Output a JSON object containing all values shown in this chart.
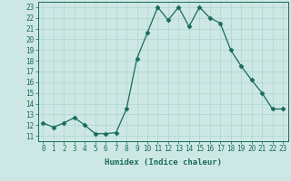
{
  "x": [
    0,
    1,
    2,
    3,
    4,
    5,
    6,
    7,
    8,
    9,
    10,
    11,
    12,
    13,
    14,
    15,
    16,
    17,
    18,
    19,
    20,
    21,
    22,
    23
  ],
  "y": [
    12.2,
    11.8,
    12.2,
    12.7,
    12.0,
    11.2,
    11.2,
    11.3,
    13.5,
    18.2,
    20.6,
    23.0,
    21.8,
    23.0,
    21.2,
    23.0,
    22.0,
    21.5,
    19.0,
    17.5,
    16.2,
    15.0,
    13.5,
    13.5
  ],
  "line_color": "#1a6b5a",
  "marker": "D",
  "marker_size": 2.5,
  "bg_color": "#cde8e4",
  "grid_color": "#b0d4ce",
  "xlabel": "Humidex (Indice chaleur)",
  "ylim": [
    10.5,
    23.5
  ],
  "xlim": [
    -0.5,
    23.5
  ],
  "yticks": [
    11,
    12,
    13,
    14,
    15,
    16,
    17,
    18,
    19,
    20,
    21,
    22,
    23
  ],
  "xticks": [
    0,
    1,
    2,
    3,
    4,
    5,
    6,
    7,
    8,
    9,
    10,
    11,
    12,
    13,
    14,
    15,
    16,
    17,
    18,
    19,
    20,
    21,
    22,
    23
  ],
  "label_fontsize": 6.5,
  "tick_fontsize": 5.5
}
